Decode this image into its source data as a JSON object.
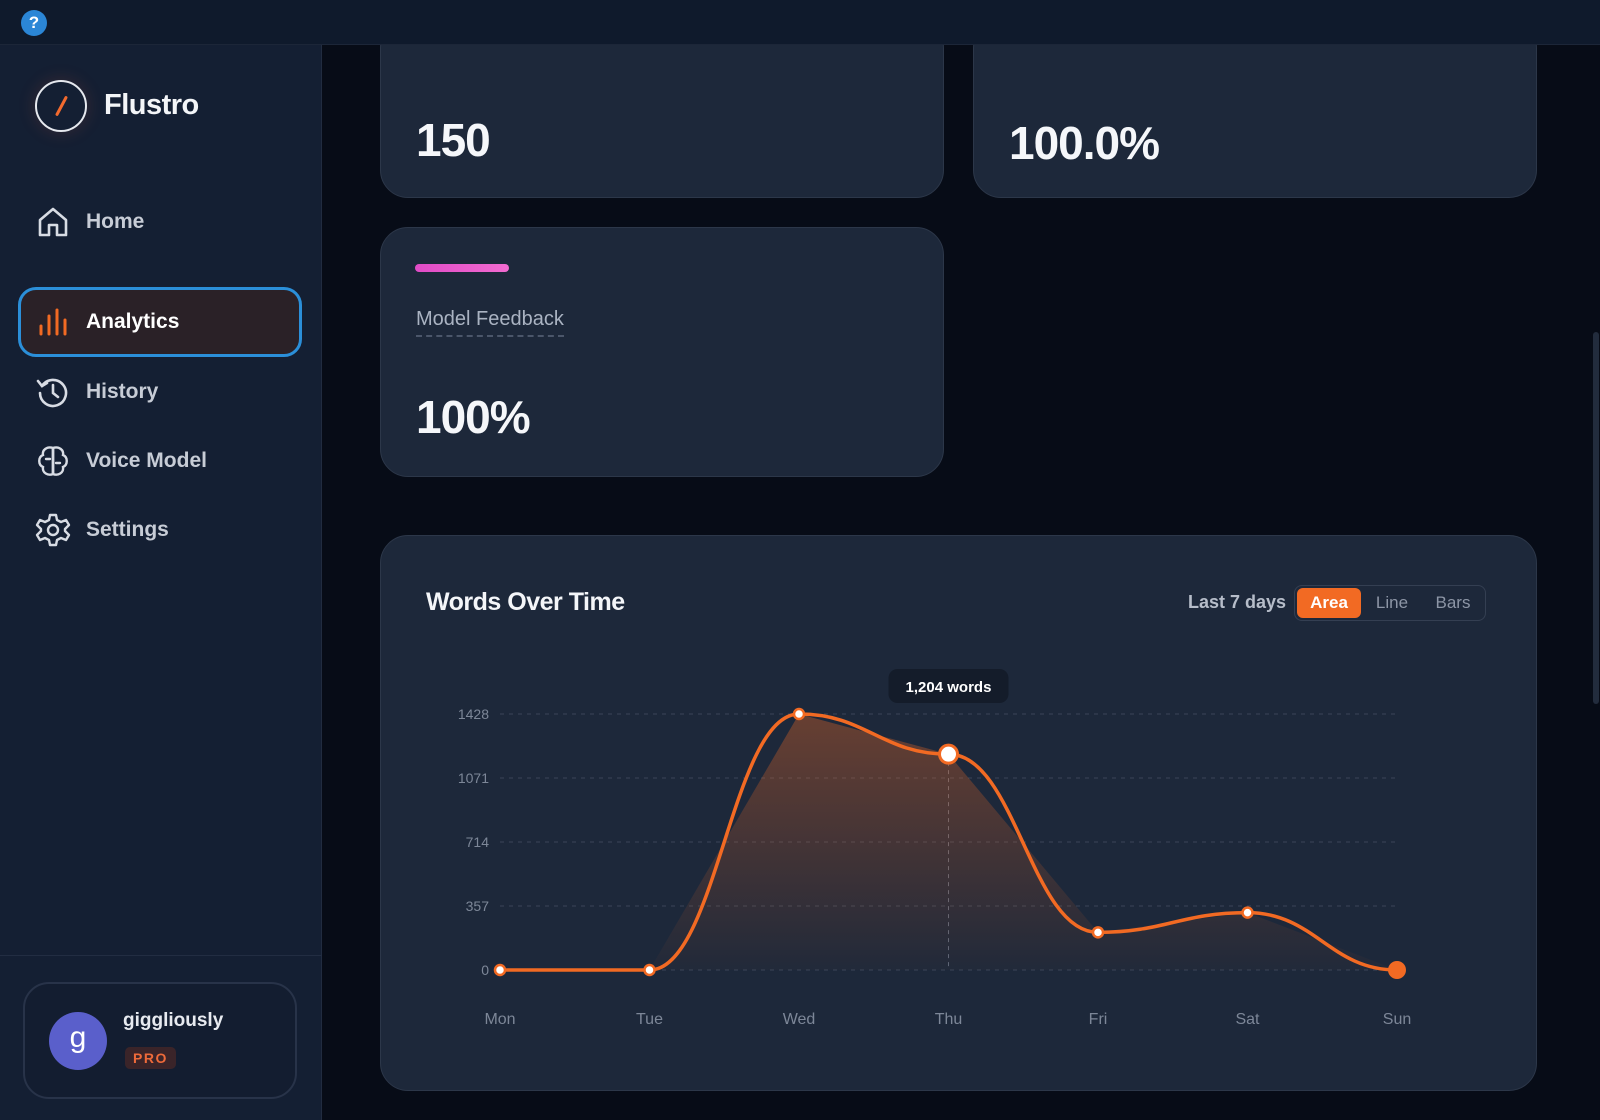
{
  "app": {
    "name": "Flustro"
  },
  "colors": {
    "accent": "#f26a23",
    "active_border": "#2b8fd9",
    "card_bg": "#1d283a",
    "feedback_bar": "#e04bc6"
  },
  "sidebar": {
    "items": [
      {
        "label": "Home",
        "icon": "home-icon"
      },
      {
        "label": "Analytics",
        "icon": "bar-chart-icon",
        "active": true
      },
      {
        "label": "History",
        "icon": "history-icon"
      },
      {
        "label": "Voice Model",
        "icon": "brain-icon"
      },
      {
        "label": "Settings",
        "icon": "gear-icon"
      }
    ]
  },
  "user": {
    "initial": "g",
    "name": "giggliously",
    "plan": "PRO"
  },
  "stats": {
    "wpm": {
      "value": "150"
    },
    "cleanup": {
      "value": "100.0%"
    },
    "feedback": {
      "label": "Model Feedback",
      "value": "100%"
    }
  },
  "chart_panel": {
    "title": "Words Over Time",
    "range": "Last 7 days",
    "modes": [
      "Area",
      "Line",
      "Bars"
    ],
    "active_mode": "Area",
    "tooltip": "1,204 words"
  },
  "chart_data": {
    "type": "area",
    "title": "Words Over Time",
    "categories": [
      "Mon",
      "Tue",
      "Wed",
      "Thu",
      "Fri",
      "Sat",
      "Sun"
    ],
    "values": [
      0,
      0,
      1428,
      1204,
      210,
      320,
      0
    ],
    "yticks": [
      0,
      357,
      714,
      1071,
      1428
    ],
    "ylim": [
      0,
      1428
    ],
    "grid": true,
    "highlight": {
      "category": "Thu",
      "value": 1204
    }
  }
}
